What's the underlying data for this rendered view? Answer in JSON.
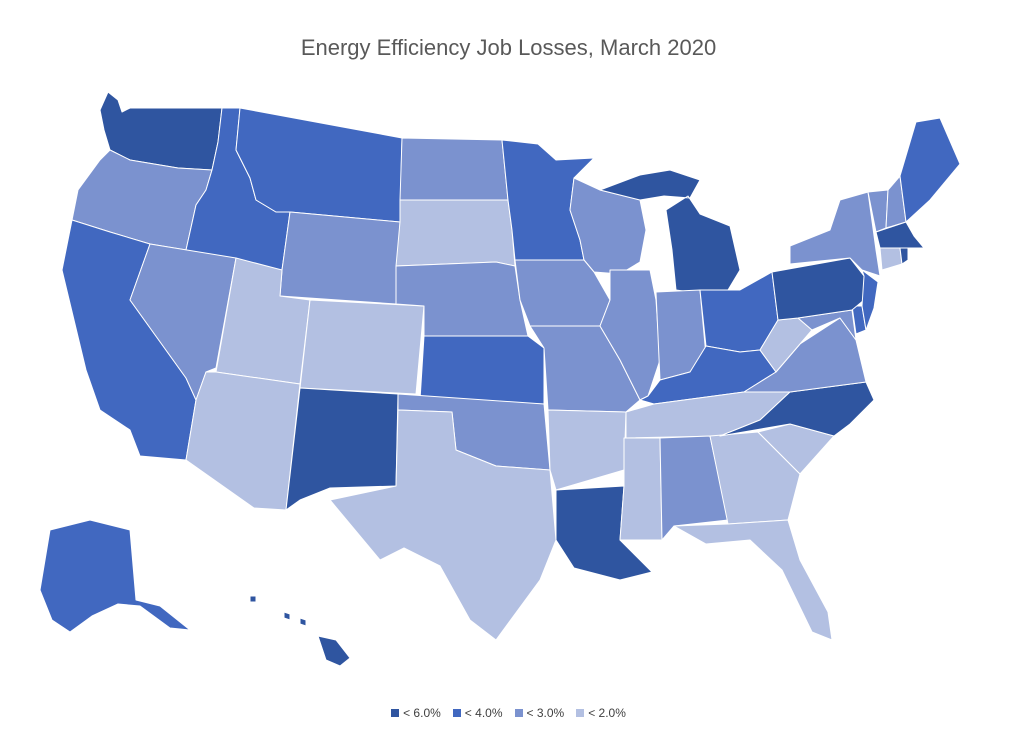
{
  "title": "Energy Efficiency Job Losses, March 2020",
  "legend": [
    {
      "label": "< 6.0%",
      "color": "#2f55a0"
    },
    {
      "label": "< 4.0%",
      "color": "#4168c0"
    },
    {
      "label": "< 3.0%",
      "color": "#7b92cf"
    },
    {
      "label": "< 2.0%",
      "color": "#b3c0e2"
    }
  ],
  "state_categories": {
    "WA": 0,
    "MT": 1,
    "ID": 1,
    "OR": 2,
    "WY": 2,
    "ND": 2,
    "SD": 3,
    "MN": 1,
    "WI": 2,
    "MI": 0,
    "ME": 1,
    "CA": 1,
    "NV": 2,
    "UT": 3,
    "CO": 3,
    "NE": 2,
    "IA": 2,
    "IL": 2,
    "IN": 2,
    "OH": 1,
    "PA": 0,
    "NY": 2,
    "VT": 2,
    "NH": 2,
    "MA": 0,
    "RI": 0,
    "CT": 3,
    "NJ": 1,
    "DE": 1,
    "MD": 2,
    "WV": 3,
    "VA": 2,
    "KY": 1,
    "TN": 3,
    "NC": 0,
    "SC": 3,
    "GA": 3,
    "FL": 3,
    "AL": 2,
    "MS": 3,
    "LA": 0,
    "AR": 3,
    "MO": 2,
    "KS": 1,
    "OK": 2,
    "TX": 3,
    "NM": 0,
    "AZ": 3,
    "AK": 1,
    "HI": 0
  }
}
